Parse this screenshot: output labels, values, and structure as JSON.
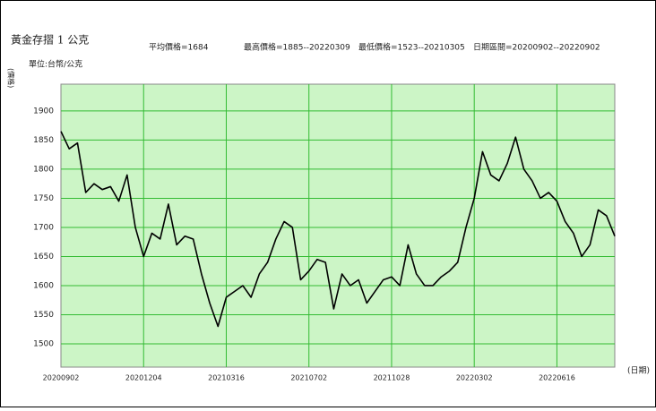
{
  "chart_data": {
    "type": "line",
    "title": "黃金存摺 1 公克",
    "subtitle": "單位:台幣/公克",
    "annotations": [
      "平均價格=1684",
      "最高價格=1885--20220309",
      "最低價格=1523--20210305",
      "日期區間=20200902--20220902"
    ],
    "y_label": "(價格)",
    "x_label": "(日期)",
    "categories": [
      "20200902",
      null,
      null,
      null,
      null,
      null,
      null,
      null,
      null,
      null,
      "20201204",
      null,
      null,
      null,
      null,
      null,
      null,
      null,
      null,
      null,
      "20210316",
      null,
      null,
      null,
      null,
      null,
      null,
      null,
      null,
      null,
      "20210702",
      null,
      null,
      null,
      null,
      null,
      null,
      null,
      null,
      null,
      "20211028",
      null,
      null,
      null,
      null,
      null,
      null,
      null,
      null,
      null,
      "20220302",
      null,
      null,
      null,
      null,
      null,
      null,
      null,
      null,
      null,
      "20220616",
      null,
      null,
      null,
      null,
      null,
      null,
      null
    ],
    "series": [
      {
        "name": "黃金存摺",
        "color": "#000000",
        "values": [
          1865,
          1835,
          1845,
          1760,
          1775,
          1765,
          1770,
          1745,
          1790,
          1700,
          1650,
          1690,
          1680,
          1740,
          1670,
          1685,
          1680,
          1620,
          1570,
          1530,
          1580,
          1590,
          1600,
          1580,
          1620,
          1640,
          1680,
          1710,
          1700,
          1610,
          1625,
          1645,
          1640,
          1560,
          1620,
          1600,
          1610,
          1570,
          1590,
          1610,
          1615,
          1600,
          1670,
          1620,
          1600,
          1600,
          1615,
          1625,
          1640,
          1700,
          1750,
          1830,
          1790,
          1780,
          1810,
          1855,
          1800,
          1780,
          1750,
          1760,
          1745,
          1710,
          1690,
          1650,
          1670,
          1730,
          1720,
          1685
        ]
      }
    ],
    "ylim": [
      1460,
      1946
    ],
    "yticks": [
      1500,
      1550,
      1600,
      1650,
      1700,
      1750,
      1800,
      1850,
      1900
    ],
    "grid": true,
    "plot_color": "#ccf5c6",
    "grid_color": "#33bb33"
  }
}
